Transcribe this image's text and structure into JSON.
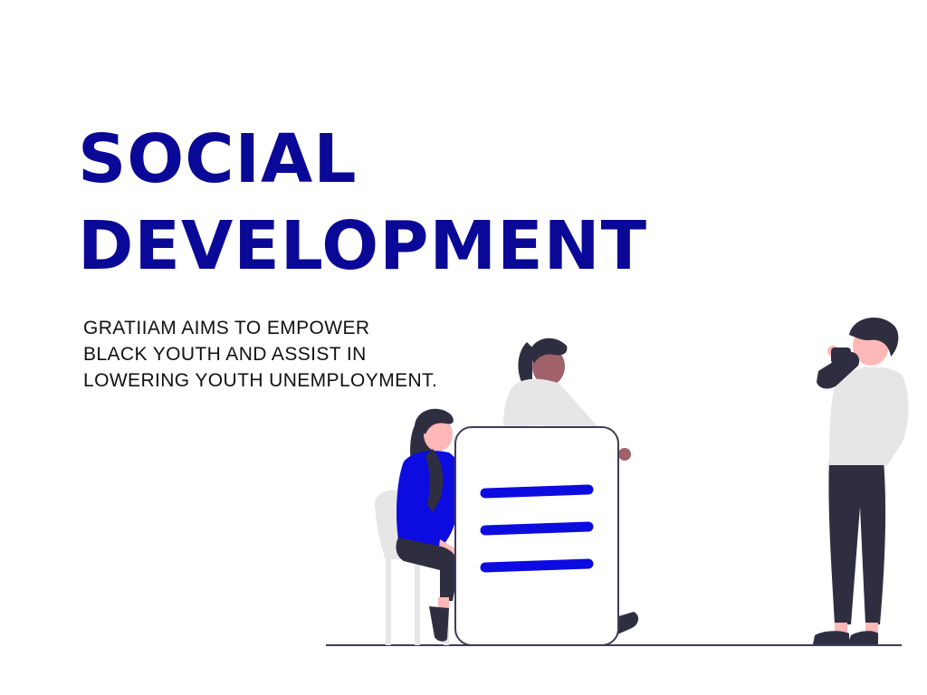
{
  "heading": {
    "line1": "SOCIAL",
    "line2": "DEVELOPMENT"
  },
  "description": {
    "line1": "GRATIIAM AIMS TO EMPOWER",
    "line2": "BLACK YOUTH AND ASSIST IN",
    "line3": "LOWERING YOUTH UNEMPLOYMENT."
  },
  "colors": {
    "brand_blue": "#0a0896",
    "accent_blue": "#0c0ce0",
    "dark_clothing": "#2f2e41",
    "light_gray": "#e6e6e6"
  }
}
